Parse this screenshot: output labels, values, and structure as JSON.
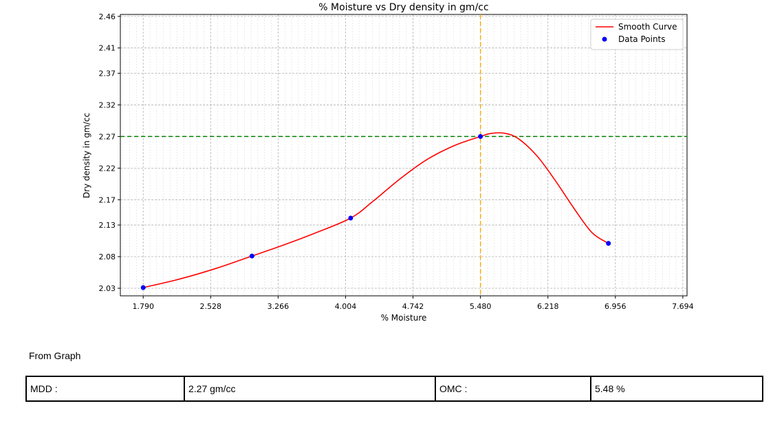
{
  "chart_data": {
    "type": "line",
    "title": "% Moisture vs Dry density in gm/cc",
    "xlabel": "% Moisture",
    "ylabel": "Dry density in gm/cc",
    "xticks": [
      "1.790",
      "2.528",
      "3.266",
      "4.004",
      "4.742",
      "5.480",
      "6.218",
      "6.956",
      "7.694"
    ],
    "yticks": [
      "2.03",
      "2.08",
      "2.13",
      "2.17",
      "2.22",
      "2.27",
      "2.32",
      "2.37",
      "2.41",
      "2.46"
    ],
    "xlim": [
      1.54,
      7.74
    ],
    "ylim": [
      2.018,
      2.463
    ],
    "grid": true,
    "legend_position": "top-right",
    "series": [
      {
        "name": "Smooth Curve",
        "kind": "line",
        "color": "#ff0000",
        "x": [
          1.79,
          2.2,
          2.6,
          2.98,
          3.3,
          3.65,
          4.06,
          4.3,
          4.6,
          4.9,
          5.2,
          5.48,
          5.6,
          5.75,
          5.9,
          6.1,
          6.3,
          6.5,
          6.7,
          6.88
        ],
        "y": [
          2.031,
          2.045,
          2.062,
          2.081,
          2.097,
          2.116,
          2.141,
          2.167,
          2.203,
          2.234,
          2.256,
          2.27,
          2.275,
          2.275,
          2.266,
          2.239,
          2.2,
          2.157,
          2.118,
          2.101
        ]
      },
      {
        "name": "Data Points",
        "kind": "scatter",
        "color": "#0000ff",
        "x": [
          1.79,
          2.98,
          4.06,
          5.48,
          6.88
        ],
        "y": [
          2.031,
          2.081,
          2.141,
          2.27,
          2.101
        ]
      }
    ],
    "reference_lines": {
      "horizontal": {
        "y": 2.27,
        "color": "#008000"
      },
      "vertical": {
        "x": 5.48,
        "color": "#ffa500"
      }
    }
  },
  "caption": "From Graph",
  "results": {
    "mdd_label": "MDD :",
    "mdd_value": "2.27  gm/cc",
    "omc_label": "OMC :",
    "omc_value": "5.48  %"
  }
}
